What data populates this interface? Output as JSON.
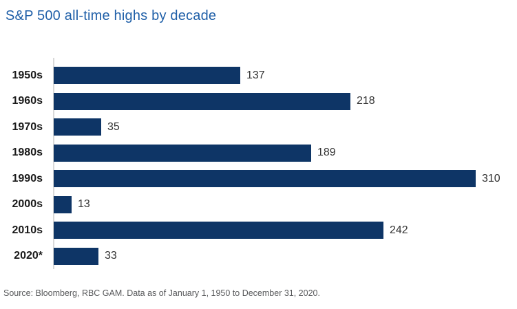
{
  "header": {
    "title": "S&P 500 all-time highs by decade"
  },
  "chart_data": {
    "type": "bar",
    "orientation": "horizontal",
    "title": "S&P 500 all-time highs by decade",
    "categories": [
      "1950s",
      "1960s",
      "1970s",
      "1980s",
      "1990s",
      "2000s",
      "2010s",
      "2020*"
    ],
    "values": [
      137,
      218,
      35,
      189,
      310,
      13,
      242,
      33
    ],
    "xlabel": "",
    "ylabel": "",
    "xlim": [
      0,
      310
    ],
    "grid": false,
    "legend": "none",
    "value_labels_shown": true
  },
  "colors": {
    "title": "#1f5fa8",
    "bar": "#0e3566",
    "axis_line": "#d9d9d9",
    "category_label": "#1a1a1a",
    "value_label": "#333333",
    "source_text": "#58595b"
  },
  "footer": {
    "source": "Source: Bloomberg, RBC GAM. Data as of January 1, 1950 to December 31, 2020."
  }
}
